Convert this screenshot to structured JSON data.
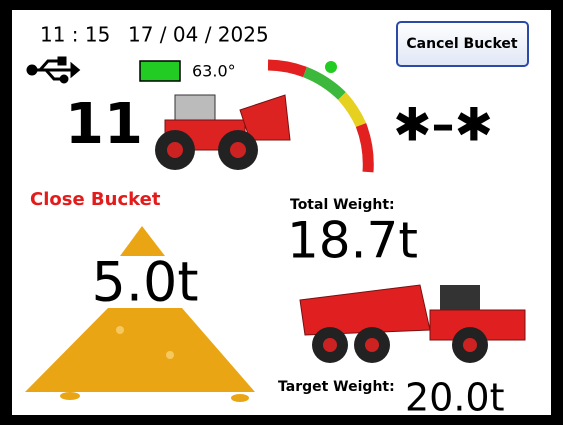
{
  "status_bar": {
    "time": "11 : 15",
    "date": "17 / 04 / 2025"
  },
  "buttons": {
    "cancel_bucket": "Cancel Bucket"
  },
  "tilt": {
    "angle": "63.0°"
  },
  "counter": "11",
  "status_symbol": "✱–✱",
  "bucket": {
    "instruction": "Close Bucket",
    "weight": "5.0t"
  },
  "total": {
    "label": "Total Weight:",
    "value": "18.7t"
  },
  "target": {
    "label": "Target Weight:",
    "value": "20.0t"
  }
}
